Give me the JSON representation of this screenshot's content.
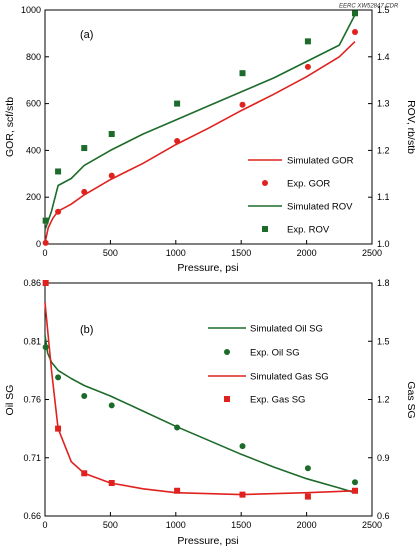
{
  "figure": {
    "corner_text": "EERC XW52847.CDR"
  },
  "colors": {
    "red": "#e0221f",
    "green": "#1d6b2a",
    "axis": "#000000"
  },
  "chart_data": [
    {
      "type": "line",
      "panel": "(a)",
      "xlabel": "Pressure, psi",
      "ylabel": "GOR, scf/stb",
      "y2label": "ROV, rb/stb",
      "xlim": [
        0,
        2500
      ],
      "ylim": [
        0,
        1000
      ],
      "y2lim": [
        1.0,
        1.5
      ],
      "xticks": [
        "0",
        "500",
        "1000",
        "1500",
        "2000",
        "2500"
      ],
      "yticks": [
        "0",
        "200",
        "400",
        "600",
        "800",
        "1000"
      ],
      "y2ticks": [
        "1.0",
        "1.1",
        "1.2",
        "1.3",
        "1.4",
        "1.5"
      ],
      "legend_position": "bottom-right",
      "series": [
        {
          "name": "Simulated GOR",
          "kind": "line",
          "axis": "left",
          "color": "#e0221f",
          "points": [
            [
              0,
              5
            ],
            [
              25,
              70
            ],
            [
              60,
              110
            ],
            [
              100,
              140
            ],
            [
              200,
              170
            ],
            [
              300,
              210
            ],
            [
              500,
              275
            ],
            [
              750,
              345
            ],
            [
              1000,
              425
            ],
            [
              1250,
              495
            ],
            [
              1500,
              570
            ],
            [
              1750,
              640
            ],
            [
              2000,
              715
            ],
            [
              2250,
              800
            ],
            [
              2370,
              865
            ]
          ]
        },
        {
          "name": "Exp. GOR",
          "kind": "marker",
          "marker": "circle",
          "axis": "left",
          "color": "#e0221f",
          "points": [
            [
              5,
              5
            ],
            [
              100,
              138
            ],
            [
              300,
              223
            ],
            [
              510,
              292
            ],
            [
              1010,
              440
            ],
            [
              1510,
              595
            ],
            [
              2010,
              757
            ],
            [
              2370,
              906
            ]
          ]
        },
        {
          "name": "Simulated ROV",
          "kind": "line",
          "axis": "right",
          "color": "#1d6b2a",
          "points": [
            [
              0,
              1.03
            ],
            [
              50,
              1.07
            ],
            [
              100,
              1.125
            ],
            [
              200,
              1.14
            ],
            [
              300,
              1.168
            ],
            [
              500,
              1.2
            ],
            [
              750,
              1.235
            ],
            [
              1000,
              1.265
            ],
            [
              1250,
              1.295
            ],
            [
              1500,
              1.325
            ],
            [
              1750,
              1.355
            ],
            [
              2000,
              1.39
            ],
            [
              2250,
              1.425
            ],
            [
              2370,
              1.49
            ]
          ]
        },
        {
          "name": "Exp. ROV",
          "kind": "marker",
          "marker": "square",
          "axis": "right",
          "color": "#1d6b2a",
          "points": [
            [
              5,
              1.05
            ],
            [
              100,
              1.155
            ],
            [
              300,
              1.205
            ],
            [
              510,
              1.235
            ],
            [
              1010,
              1.3
            ],
            [
              1510,
              1.365
            ],
            [
              2010,
              1.433
            ],
            [
              2370,
              1.493
            ]
          ]
        }
      ]
    },
    {
      "type": "line",
      "panel": "(b)",
      "xlabel": "Pressure, psi",
      "ylabel": "Oil SG",
      "y2label": "Gas SG",
      "xlim": [
        0,
        2500
      ],
      "ylim": [
        0.66,
        0.86
      ],
      "y2lim": [
        0.6,
        1.8
      ],
      "xticks": [
        "0",
        "500",
        "1000",
        "1500",
        "2000",
        "2500"
      ],
      "yticks": [
        "0.66",
        "0.71",
        "0.76",
        "0.81",
        "0.86"
      ],
      "y2ticks": [
        "0.6",
        "0.9",
        "1.2",
        "1.5",
        "1.8"
      ],
      "legend_position": "top-right",
      "series": [
        {
          "name": "Simulated Oil SG",
          "kind": "line",
          "axis": "left",
          "color": "#1d6b2a",
          "points": [
            [
              0,
              0.815
            ],
            [
              20,
              0.8
            ],
            [
              50,
              0.792
            ],
            [
              100,
              0.785
            ],
            [
              200,
              0.778
            ],
            [
              300,
              0.772
            ],
            [
              500,
              0.763
            ],
            [
              750,
              0.75
            ],
            [
              1000,
              0.737
            ],
            [
              1250,
              0.725
            ],
            [
              1500,
              0.713
            ],
            [
              1750,
              0.702
            ],
            [
              2000,
              0.692
            ],
            [
              2250,
              0.684
            ],
            [
              2370,
              0.68
            ]
          ]
        },
        {
          "name": "Exp. Oil SG",
          "kind": "marker",
          "marker": "circle",
          "axis": "left",
          "color": "#1d6b2a",
          "points": [
            [
              5,
              0.805
            ],
            [
              100,
              0.779
            ],
            [
              300,
              0.763
            ],
            [
              510,
              0.755
            ],
            [
              1010,
              0.736
            ],
            [
              1510,
              0.72
            ],
            [
              2010,
              0.701
            ],
            [
              2370,
              0.689
            ]
          ]
        },
        {
          "name": "Simulated Gas SG",
          "kind": "line",
          "axis": "right",
          "color": "#e0221f",
          "points": [
            [
              0,
              1.7
            ],
            [
              50,
              1.35
            ],
            [
              100,
              1.05
            ],
            [
              200,
              0.88
            ],
            [
              300,
              0.82
            ],
            [
              500,
              0.77
            ],
            [
              750,
              0.74
            ],
            [
              1000,
              0.72
            ],
            [
              1500,
              0.71
            ],
            [
              2000,
              0.72
            ],
            [
              2370,
              0.73
            ]
          ]
        },
        {
          "name": "Exp. Gas SG",
          "kind": "marker",
          "marker": "square",
          "axis": "right",
          "color": "#e0221f",
          "points": [
            [
              5,
              1.8
            ],
            [
              100,
              1.05
            ],
            [
              300,
              0.82
            ],
            [
              510,
              0.77
            ],
            [
              1010,
              0.73
            ],
            [
              1510,
              0.71
            ],
            [
              2010,
              0.7
            ],
            [
              2370,
              0.73
            ]
          ]
        }
      ]
    }
  ]
}
